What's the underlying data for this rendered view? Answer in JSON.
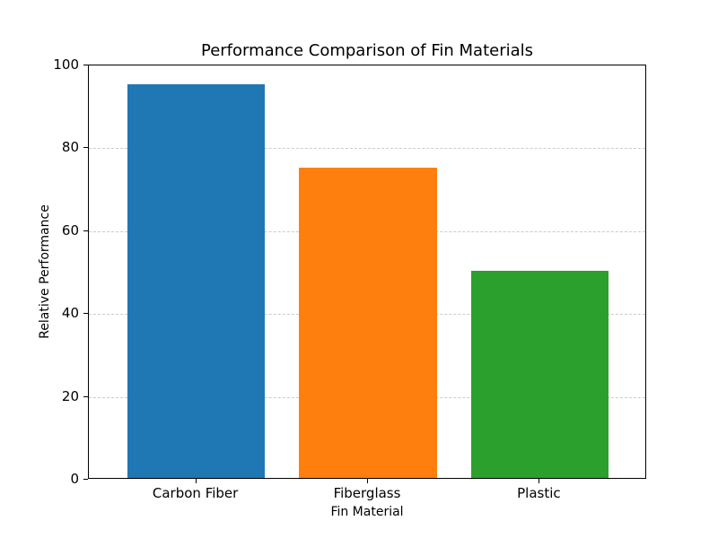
{
  "chart_data": {
    "type": "bar",
    "title": "Performance Comparison of Fin Materials",
    "xlabel": "Fin Material",
    "ylabel": "Relative Performance",
    "categories": [
      "Carbon Fiber",
      "Fiberglass",
      "Plastic"
    ],
    "values": [
      95,
      75,
      50
    ],
    "colors": [
      "#1f77b4",
      "#ff7f0e",
      "#2ca02c"
    ],
    "ylim": [
      0,
      100
    ],
    "yticks": [
      0,
      20,
      40,
      60,
      80,
      100
    ],
    "grid": {
      "axis": "y",
      "style": "dashed",
      "color": "#cccccc"
    },
    "legend": null
  }
}
